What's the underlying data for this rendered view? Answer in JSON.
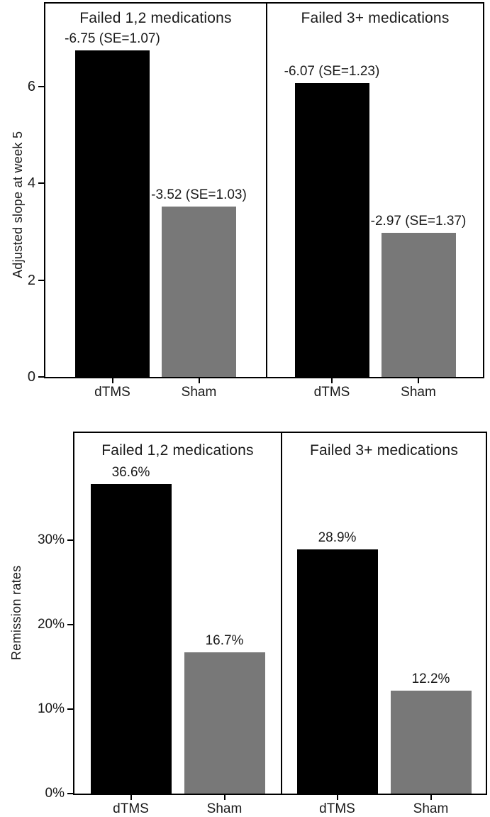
{
  "figure": {
    "background": "#ffffff",
    "bar_colors": {
      "dTMS": "#000000",
      "Sham": "#787878"
    },
    "frame_color": "#000000"
  },
  "chart_data": [
    {
      "type": "bar",
      "title": "",
      "ylabel": "Adjusted slope at week 5",
      "xlabel": "",
      "ylim": [
        0,
        7.7
      ],
      "grid": false,
      "legend": "none",
      "ytick_values": [
        0,
        2,
        4,
        6
      ],
      "ytick_labels": [
        "0",
        "2",
        "4",
        "6"
      ],
      "categories": [
        "dTMS",
        "Sham"
      ],
      "panels": [
        {
          "title": "Failed 1,2 medications",
          "bars": [
            {
              "category": "dTMS",
              "value": 6.75,
              "label": "-6.75 (SE=1.07)",
              "color": "#000000"
            },
            {
              "category": "Sham",
              "value": 3.52,
              "label": "-3.52 (SE=1.03)",
              "color": "#787878"
            }
          ]
        },
        {
          "title": "Failed 3+ medications",
          "bars": [
            {
              "category": "dTMS",
              "value": 6.07,
              "label": "-6.07 (SE=1.23)",
              "color": "#000000"
            },
            {
              "category": "Sham",
              "value": 2.97,
              "label": "-2.97 (SE=1.37)",
              "color": "#787878"
            }
          ]
        }
      ]
    },
    {
      "type": "bar",
      "title": "",
      "ylabel": "Remission rates",
      "xlabel": "",
      "ylim": [
        0,
        42.7
      ],
      "grid": false,
      "legend": "none",
      "ytick_values": [
        0,
        10,
        20,
        30
      ],
      "ytick_labels": [
        "0%",
        "10%",
        "20%",
        "30%"
      ],
      "categories": [
        "dTMS",
        "Sham"
      ],
      "panels": [
        {
          "title": "Failed 1,2 medications",
          "bars": [
            {
              "category": "dTMS",
              "value": 36.6,
              "label": "36.6%",
              "color": "#000000"
            },
            {
              "category": "Sham",
              "value": 16.7,
              "label": "16.7%",
              "color": "#787878"
            }
          ]
        },
        {
          "title": "Failed 3+ medications",
          "bars": [
            {
              "category": "dTMS",
              "value": 28.9,
              "label": "28.9%",
              "color": "#000000"
            },
            {
              "category": "Sham",
              "value": 12.2,
              "label": "12.2%",
              "color": "#787878"
            }
          ]
        }
      ]
    }
  ]
}
